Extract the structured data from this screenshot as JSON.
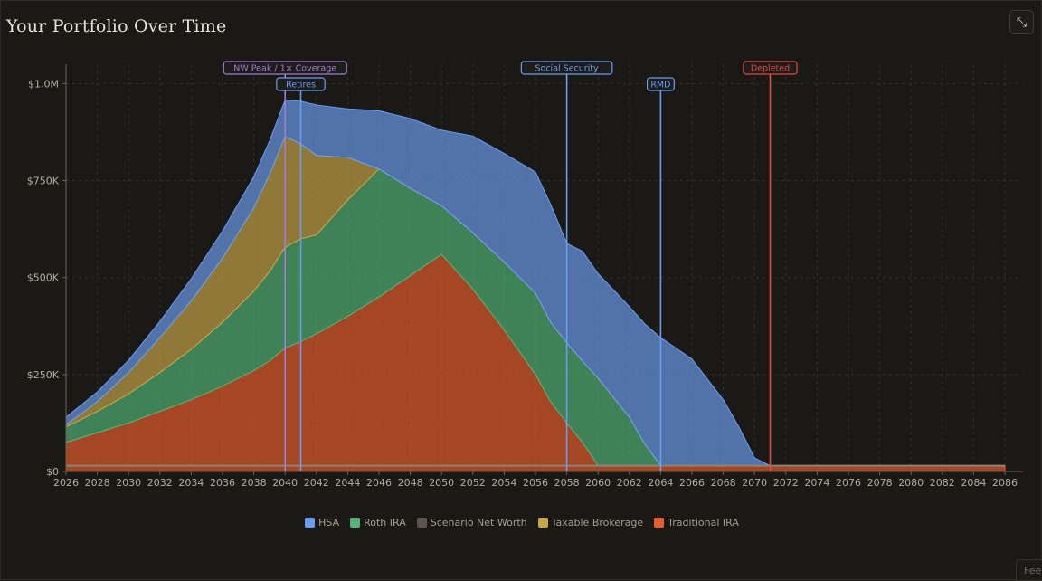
{
  "header": {
    "title": "Your Portfolio Over Time",
    "expand_icon": "expand-diagonal-icon"
  },
  "feedback_tab": {
    "label": "Fee"
  },
  "colors": {
    "background": "#1b1916",
    "hsa": "#6b9df0",
    "roth": "#52b477",
    "net_worth": "#5a544c",
    "taxable": "#c8a548",
    "traditional": "#e85d2c",
    "marker_purple": "#9d7fd4",
    "marker_blue": "#6b9df0",
    "marker_red": "#e04a40"
  },
  "chart_data": {
    "type": "area",
    "title": "Your Portfolio Over Time",
    "xlabel": "",
    "ylabel": "",
    "xlim": [
      2026,
      2086
    ],
    "ylim": [
      0,
      1050000
    ],
    "x_ticks": [
      2026,
      2028,
      2030,
      2032,
      2034,
      2036,
      2038,
      2040,
      2042,
      2044,
      2046,
      2048,
      2050,
      2052,
      2054,
      2056,
      2058,
      2060,
      2062,
      2064,
      2066,
      2068,
      2070,
      2072,
      2074,
      2076,
      2078,
      2080,
      2082,
      2084,
      2086
    ],
    "y_ticks": [
      {
        "value": 0,
        "label": "$0"
      },
      {
        "value": 250000,
        "label": "$250K"
      },
      {
        "value": 500000,
        "label": "$500K"
      },
      {
        "value": 750000,
        "label": "$750K"
      },
      {
        "value": 1000000,
        "label": "$1.0M"
      }
    ],
    "grid": true,
    "legend_position": "bottom",
    "legend": [
      "HSA",
      "Roth IRA",
      "Scenario Net Worth",
      "Taxable Brokerage",
      "Traditional IRA"
    ],
    "x": [
      2026,
      2028,
      2030,
      2032,
      2034,
      2036,
      2038,
      2039,
      2040,
      2041,
      2042,
      2044,
      2046,
      2048,
      2050,
      2052,
      2054,
      2056,
      2057,
      2058,
      2059,
      2060,
      2062,
      2063,
      2064,
      2066,
      2068,
      2069,
      2070,
      2071,
      2072,
      2086
    ],
    "stack_order": [
      "traditional",
      "roth",
      "taxable",
      "hsa"
    ],
    "series": [
      {
        "key": "traditional",
        "name": "Traditional IRA",
        "values": [
          75000,
          100000,
          125000,
          155000,
          185000,
          220000,
          260000,
          285000,
          318000,
          335000,
          355000,
          400000,
          450000,
          505000,
          560000,
          470000,
          365000,
          250000,
          178000,
          125000,
          75000,
          15000,
          15000,
          15000,
          15000,
          15000,
          15000,
          15000,
          15000,
          15000,
          15000,
          15000
        ]
      },
      {
        "key": "roth",
        "name": "Roth IRA",
        "values": [
          40000,
          55000,
          75000,
          100000,
          130000,
          165000,
          205000,
          230000,
          260000,
          265000,
          255000,
          300000,
          330000,
          225000,
          125000,
          145000,
          175000,
          210000,
          205000,
          207000,
          210000,
          225000,
          125000,
          55000,
          0,
          0,
          0,
          0,
          0,
          0,
          0,
          0
        ]
      },
      {
        "key": "taxable",
        "name": "Taxable Brokerage",
        "values": [
          5000,
          25000,
          55000,
          90000,
          125000,
          165000,
          215000,
          250000,
          285000,
          245000,
          205000,
          110000,
          0,
          0,
          0,
          0,
          0,
          0,
          0,
          0,
          0,
          0,
          0,
          0,
          0,
          0,
          0,
          0,
          0,
          0,
          0,
          0
        ]
      },
      {
        "key": "hsa",
        "name": "HSA",
        "values": [
          20000,
          25000,
          32000,
          42000,
          57000,
          70000,
          80000,
          87000,
          95000,
          110000,
          130000,
          125000,
          150000,
          180000,
          195000,
          250000,
          280000,
          312000,
          303000,
          256000,
          283000,
          270000,
          285000,
          310000,
          330000,
          275000,
          170000,
          100000,
          20000,
          0,
          0,
          0
        ]
      }
    ],
    "net_worth_line": {
      "name": "Scenario Net Worth",
      "x": [
        2026,
        2086
      ],
      "values": [
        15000,
        15000
      ]
    },
    "markers": [
      {
        "label": "NW Peak / 1× Coverage",
        "x": 2040,
        "color": "#9d7fd4",
        "row": 0
      },
      {
        "label": "Retires",
        "x": 2041,
        "color": "#6b9df0",
        "row": 1
      },
      {
        "label": "Social Security",
        "x": 2058,
        "color": "#6b9df0",
        "row": 0
      },
      {
        "label": "RMD",
        "x": 2064,
        "color": "#6b9df0",
        "row": 1
      },
      {
        "label": "Depleted",
        "x": 2071,
        "color": "#e04a40",
        "row": 0
      }
    ]
  }
}
